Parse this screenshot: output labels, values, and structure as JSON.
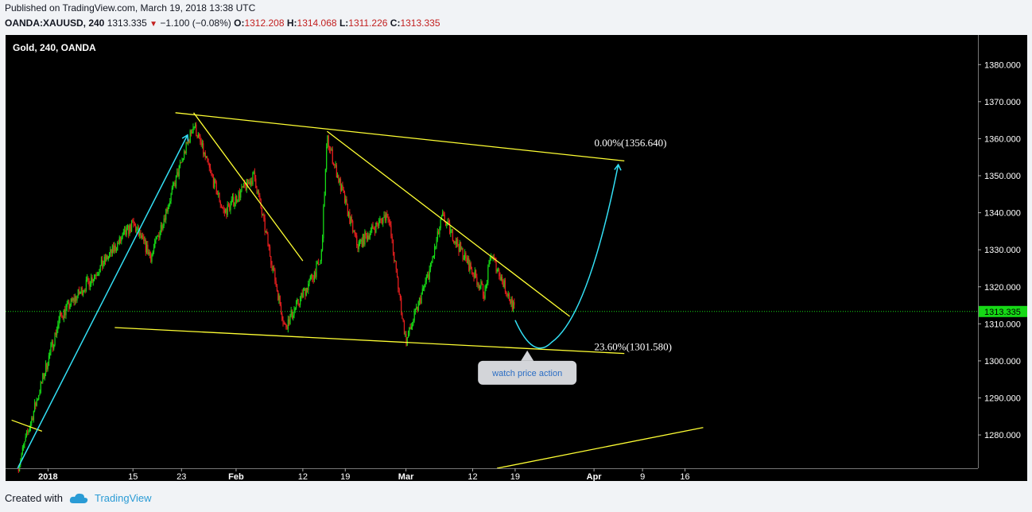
{
  "header": {
    "published": "Published on TradingView.com, March 19, 2018 13:38 UTC",
    "symbol": "OANDA:XAUUSD, 240",
    "last": "1313.335",
    "change": "−1.100 (−0.08%)",
    "o_label": "O:",
    "o": "1312.208",
    "h_label": "H:",
    "h": "1314.068",
    "l_label": "L:",
    "l": "1311.226",
    "c_label": "C:",
    "c": "1313.335"
  },
  "footer": {
    "created": "Created with",
    "brand": "TradingView"
  },
  "colors": {
    "background": "#000000",
    "up": "#16d916",
    "down": "#e61e1e",
    "trendline": "#ffff33",
    "arrow": "#33e0f5",
    "price_line": "#16d916"
  },
  "chart_data": {
    "type": "candlestick",
    "title": "Gold, 240, OANDA",
    "ylim": [
      1271,
      1388
    ],
    "y_ticks": [
      "1280.000",
      "1290.000",
      "1300.000",
      "1310.000",
      "1320.000",
      "1330.000",
      "1340.000",
      "1350.000",
      "1360.000",
      "1370.000",
      "1380.000"
    ],
    "x_ticks": [
      "2018",
      "15",
      "23",
      "Feb",
      "12",
      "19",
      "Mar",
      "12",
      "19",
      "Apr",
      "9",
      "16"
    ],
    "last_price": "1313.335",
    "trend_path": [
      [
        "2017-12-27",
        1271
      ],
      [
        "2018-01-03",
        1312
      ],
      [
        "2018-01-09",
        1324
      ],
      [
        "2018-01-15",
        1337
      ],
      [
        "2018-01-18",
        1328
      ],
      [
        "2018-01-25",
        1364
      ],
      [
        "2018-01-30",
        1340
      ],
      [
        "2018-02-04",
        1350
      ],
      [
        "2018-02-09",
        1309
      ],
      [
        "2018-02-15",
        1327
      ],
      [
        "2018-02-16",
        1360
      ],
      [
        "2018-02-21",
        1331
      ],
      [
        "2018-02-26",
        1340
      ],
      [
        "2018-03-01",
        1305
      ],
      [
        "2018-03-05",
        1325
      ],
      [
        "2018-03-07",
        1339
      ],
      [
        "2018-03-14",
        1318
      ],
      [
        "2018-03-15",
        1329
      ],
      [
        "2018-03-19",
        1313.335
      ]
    ],
    "lines": [
      {
        "from": [
          "2018-01-22",
          1367
        ],
        "to": [
          "2018-04-06",
          1354
        ]
      },
      {
        "from": [
          "2018-01-12",
          1309
        ],
        "to": [
          "2018-04-06",
          1302
        ]
      },
      {
        "from": [
          "2018-01-25",
          1367
        ],
        "to": [
          "2018-02-12",
          1327
        ]
      },
      {
        "from": [
          "2018-02-16",
          1362
        ],
        "to": [
          "2018-03-28",
          1312
        ]
      },
      {
        "from": [
          "2017-12-26",
          1284
        ],
        "to": [
          "2017-12-31",
          1281
        ]
      },
      {
        "from": [
          "2018-03-16",
          1271
        ],
        "to": [
          "2018-04-19",
          1282
        ]
      }
    ],
    "annotations": [
      {
        "text": "0.00%(1356.640)",
        "x": "2018-03-31",
        "y": 1356.64
      },
      {
        "text": "23.60%(1301.580)",
        "x": "2018-03-31",
        "y": 1301.58
      },
      {
        "text": "watch price action",
        "x": "2018-03-21",
        "y": 1297
      }
    ]
  }
}
